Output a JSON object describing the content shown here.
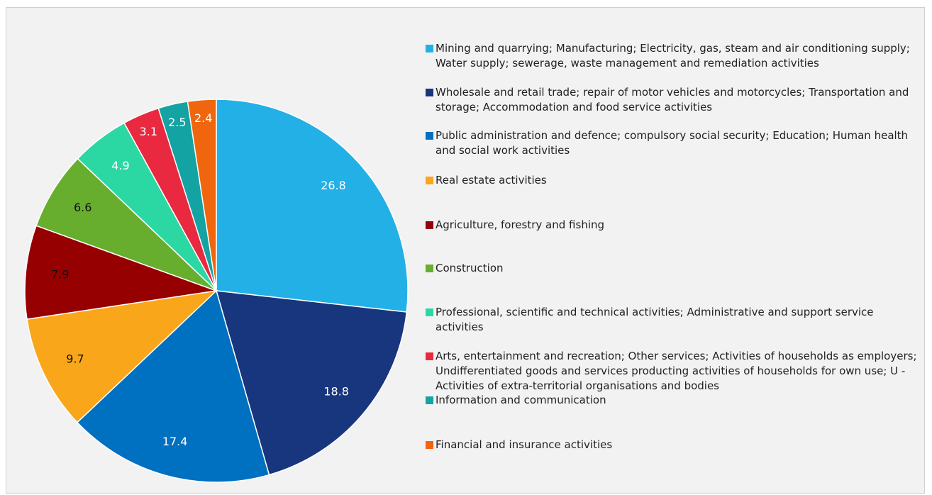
{
  "chart_data": {
    "type": "pie",
    "categories": [
      "Mining and quarrying; Manufacturing; Electricity, gas, steam and air conditioning supply; Water supply; sewerage, waste management and remediation activities",
      "Wholesale and retail trade; repair of motor vehicles and motorcycles; Transportation and storage; Accommodation and food service activities",
      "Public administration and defence; compulsory social security; Education; Human health and social work activities",
      "Real estate activities",
      "Agriculture, forestry and fishing",
      "Construction",
      "Professional, scientific and technical activities; Administrative and support service activities",
      "Arts, entertainment and recreation; Other services;  Activities of households as employers; Undifferentiated goods and services producting activities of households for own use; U - Activities of extra-territorial organisations and bodies",
      "Information and communication",
      "Financial and insurance activities"
    ],
    "values": [
      26.8,
      18.8,
      17.4,
      9.7,
      7.9,
      6.6,
      4.9,
      3.1,
      2.5,
      2.4
    ],
    "colors": [
      "#23b0e6",
      "#17367d",
      "#0070c0",
      "#f9a61b",
      "#960000",
      "#67ad2e",
      "#2bd8a4",
      "#e8293f",
      "#14a3a3",
      "#f0660f"
    ],
    "label_colors": [
      "#ffffff",
      "#ffffff",
      "#ffffff",
      "#111111",
      "#111111",
      "#111111",
      "#ffffff",
      "#ffffff",
      "#ffffff",
      "#ffffff"
    ],
    "legend": "right"
  }
}
